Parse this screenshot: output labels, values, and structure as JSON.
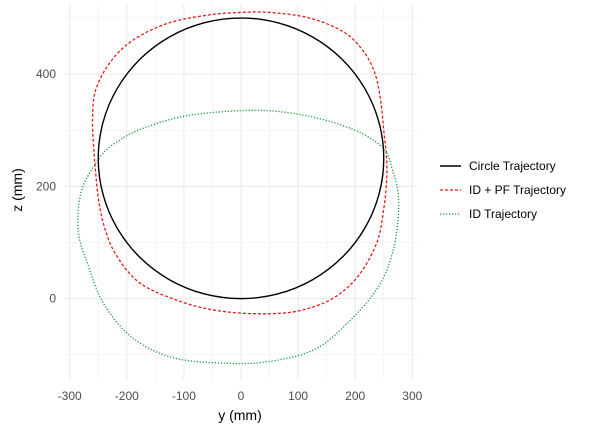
{
  "chart_data": {
    "type": "line",
    "xlabel": "y (mm)",
    "ylabel": "z (mm)",
    "xlim": [
      -310,
      310
    ],
    "ylim": [
      -145,
      525
    ],
    "x_ticks": [
      -300,
      -200,
      -100,
      0,
      100,
      200,
      300
    ],
    "y_ticks": [
      0,
      200,
      400
    ],
    "grid": true,
    "legend_position": "right",
    "series": [
      {
        "name": "Circle Trajectory",
        "color": "#000000",
        "line_style": "solid",
        "points": [
          [
            250,
            250
          ],
          [
            241.5,
            314.7
          ],
          [
            216.5,
            375
          ],
          [
            176.8,
            426.8
          ],
          [
            125,
            466.5
          ],
          [
            64.7,
            491.5
          ],
          [
            0,
            500
          ],
          [
            -64.7,
            491.5
          ],
          [
            -125,
            466.5
          ],
          [
            -176.8,
            426.8
          ],
          [
            -216.5,
            375
          ],
          [
            -241.5,
            314.7
          ],
          [
            -250,
            250
          ],
          [
            -241.5,
            185.3
          ],
          [
            -216.5,
            125
          ],
          [
            -176.8,
            73.2
          ],
          [
            -125,
            33.5
          ],
          [
            -64.7,
            8.5
          ],
          [
            0,
            0
          ],
          [
            64.7,
            8.5
          ],
          [
            125,
            33.5
          ],
          [
            176.8,
            73.2
          ],
          [
            216.5,
            125
          ],
          [
            241.5,
            185.3
          ],
          [
            250,
            250
          ]
        ]
      },
      {
        "name": "ID + PF Trajectory",
        "color": "#e41a1c",
        "line_style": "dashed",
        "points": [
          [
            255,
            250
          ],
          [
            250,
            300
          ],
          [
            245,
            350
          ],
          [
            235,
            400
          ],
          [
            215,
            440
          ],
          [
            180,
            475
          ],
          [
            120,
            500
          ],
          [
            50,
            510
          ],
          [
            0,
            510
          ],
          [
            -60,
            505
          ],
          [
            -130,
            490
          ],
          [
            -190,
            460
          ],
          [
            -230,
            420
          ],
          [
            -255,
            370
          ],
          [
            -260,
            320
          ],
          [
            -258,
            270
          ],
          [
            -255,
            230
          ],
          [
            -250,
            180
          ],
          [
            -240,
            130
          ],
          [
            -220,
            80
          ],
          [
            -180,
            30
          ],
          [
            -120,
            0
          ],
          [
            -50,
            -20
          ],
          [
            30,
            -27
          ],
          [
            100,
            -22
          ],
          [
            160,
            0
          ],
          [
            205,
            40
          ],
          [
            238,
            100
          ],
          [
            250,
            160
          ],
          [
            255,
            210
          ],
          [
            255,
            250
          ]
        ]
      },
      {
        "name": "ID Trajectory",
        "color": "#1a9641",
        "line_style": "dotted",
        "points": [
          [
            255,
            260
          ],
          [
            265,
            230
          ],
          [
            275,
            190
          ],
          [
            275,
            140
          ],
          [
            265,
            80
          ],
          [
            240,
            20
          ],
          [
            190,
            -40
          ],
          [
            130,
            -90
          ],
          [
            50,
            -112
          ],
          [
            -30,
            -115
          ],
          [
            -120,
            -105
          ],
          [
            -190,
            -70
          ],
          [
            -240,
            -10
          ],
          [
            -268,
            60
          ],
          [
            -285,
            120
          ],
          [
            -280,
            190
          ],
          [
            -255,
            240
          ],
          [
            -230,
            270
          ],
          [
            -180,
            300
          ],
          [
            -100,
            325
          ],
          [
            0,
            335
          ],
          [
            70,
            333
          ],
          [
            140,
            320
          ],
          [
            200,
            300
          ],
          [
            235,
            280
          ],
          [
            255,
            260
          ]
        ]
      }
    ]
  }
}
